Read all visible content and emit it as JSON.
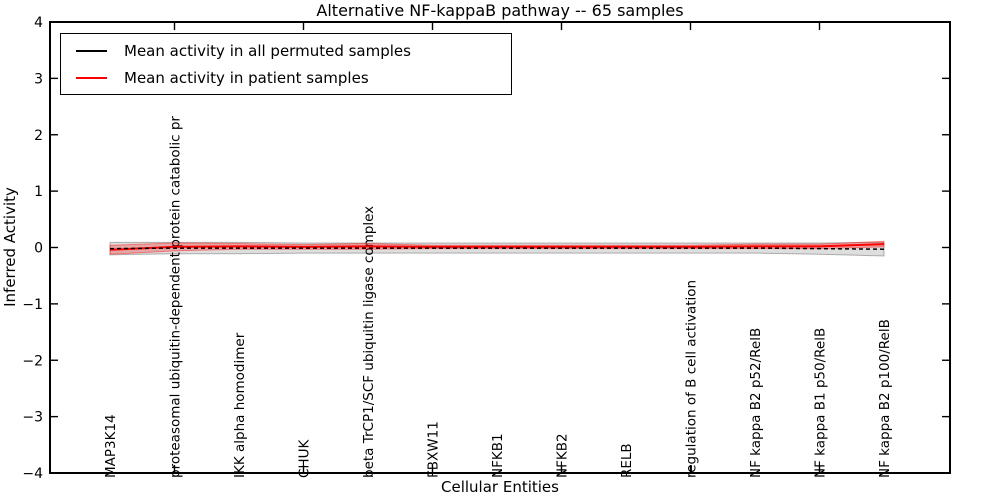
{
  "title": "Alternative NF-kappaB pathway -- 65 samples",
  "axes": {
    "xlabel": "Cellular Entities",
    "ylabel": "Inferred Activity"
  },
  "legend": {
    "position": "upper left",
    "items": [
      {
        "label": "Mean activity in all permuted samples",
        "color": "#000000"
      },
      {
        "label": "Mean activity in patient samples",
        "color": "#ff0000"
      }
    ]
  },
  "chart_data": {
    "type": "line",
    "title": "Alternative NF-kappaB pathway -- 65 samples",
    "xlabel": "Cellular Entities",
    "ylabel": "Inferred Activity",
    "ylim": [
      -4,
      4
    ],
    "ytick_values": [
      4,
      3,
      2,
      1,
      0,
      -1,
      -2,
      -3,
      -4
    ],
    "ytick_labels": [
      "4",
      "3",
      "2",
      "1",
      "0",
      "−1",
      "−2",
      "−3",
      "−4"
    ],
    "xtick_entity_indices": [
      1,
      3,
      5,
      7,
      9,
      11
    ],
    "grid": false,
    "legend_position": "upper left",
    "categories": [
      "MAP3K14",
      "proteasomal ubiquitin-dependent protein catabolic pr",
      "IKK alpha homodimer",
      "CHUK",
      "beta TrCP1/SCF ubiquitin ligase complex",
      "FBXW11",
      "NFKB1",
      "NFKB2",
      "RELB",
      "regulation of B cell activation",
      "NF kappa B2 p52/RelB",
      "NF kappa B1 p50/RelB",
      "NF kappa B2 p100/RelB"
    ],
    "series": [
      {
        "name": "Mean activity in all permuted samples",
        "color": "#000000",
        "line_style": "dashed",
        "values": [
          -0.02,
          -0.01,
          -0.01,
          -0.01,
          -0.01,
          -0.01,
          -0.01,
          -0.01,
          -0.01,
          -0.01,
          -0.01,
          -0.02,
          -0.03
        ],
        "band_halfwidths": [
          0.11,
          0.1,
          0.1,
          0.09,
          0.09,
          0.09,
          0.09,
          0.09,
          0.09,
          0.09,
          0.09,
          0.1,
          0.12
        ],
        "band_fill": "rgba(0,0,0,0.13)",
        "band_edge": "rgba(0,0,0,0.28)"
      },
      {
        "name": "Mean activity in patient samples",
        "color": "#ff0000",
        "line_style": "solid",
        "values": [
          -0.04,
          0.01,
          0.02,
          0.01,
          0.02,
          0.01,
          0.01,
          0.01,
          0.01,
          0.01,
          0.02,
          0.02,
          0.06
        ],
        "band_halfwidths": [
          0.08,
          0.07,
          0.05,
          0.04,
          0.05,
          0.03,
          0.03,
          0.03,
          0.03,
          0.03,
          0.04,
          0.04,
          0.05
        ],
        "band_fill": "rgba(255,0,0,0.25)",
        "band_edge": "rgba(255,0,0,0.40)"
      }
    ]
  }
}
